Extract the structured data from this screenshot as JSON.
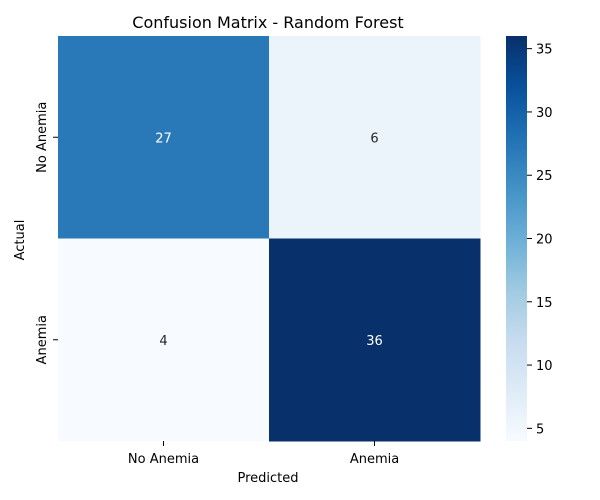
{
  "chart_data": {
    "type": "heatmap",
    "title": "Confusion Matrix - Random Forest",
    "xlabel": "Predicted",
    "ylabel": "Actual",
    "x_categories": [
      "No Anemia",
      "Anemia"
    ],
    "y_categories": [
      "No Anemia",
      "Anemia"
    ],
    "values": [
      [
        27,
        6
      ],
      [
        4,
        36
      ]
    ],
    "colorbar": {
      "range": [
        4,
        36
      ],
      "ticks": [
        5,
        10,
        15,
        20,
        25,
        30,
        35
      ]
    },
    "colormap": "Blues"
  }
}
